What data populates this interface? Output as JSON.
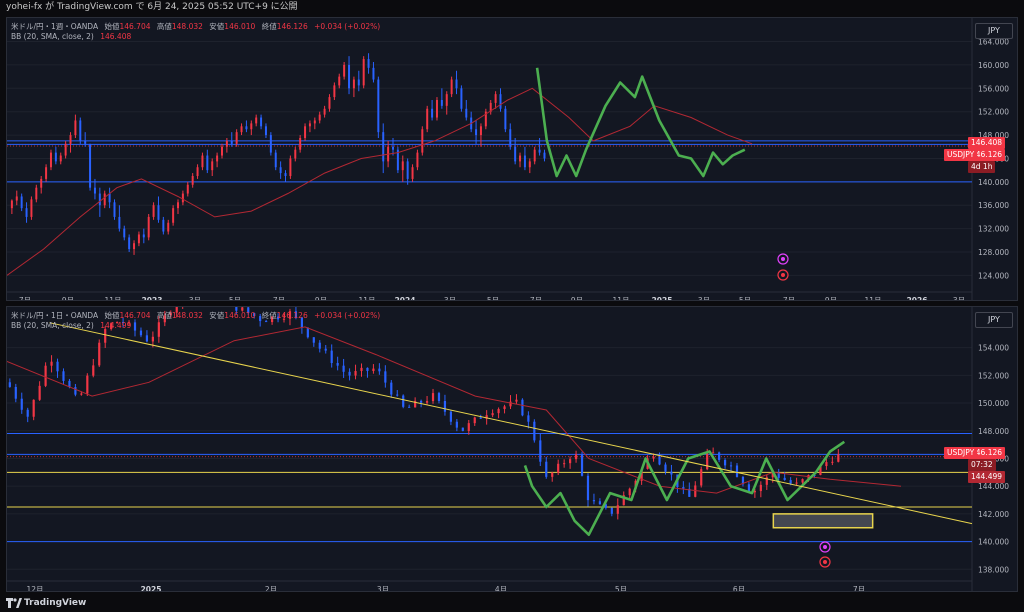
{
  "header": {
    "text": "yohei-fx が TradingView.com で 6月 24, 2025 05:52 UTC+9 に公開"
  },
  "footer": {
    "brand": "TradingView"
  },
  "colors": {
    "up": "#f23645",
    "down": "#2962ff",
    "bb": "#b22833",
    "green": "#4caf50",
    "yellow": "#e8d44d",
    "hline": "#2962ff"
  },
  "weekly": {
    "legend_title": "米ドル/円・1週・OANDA",
    "o_label": "始値",
    "o": "146.704",
    "h_label": "高値",
    "h": "148.032",
    "l_label": "安値",
    "l": "146.010",
    "c_label": "終値",
    "c": "146.126",
    "chg": "+0.034 (+0.02%)",
    "bb_label": "BB (20, SMA, close, 2)",
    "bb_value": "146.408",
    "currency": "JPY",
    "tag_bb": "146.408",
    "tag_price": "146.126",
    "tag_symbol": "USDJPY",
    "tag_countdown": "4d 1h"
  },
  "daily": {
    "legend_title": "米ドル/円・1日・OANDA",
    "o_label": "始値",
    "o": "146.704",
    "h_label": "高値",
    "h": "148.032",
    "l_label": "安値",
    "l": "146.010",
    "c_label": "終値",
    "c": "146.126",
    "chg": "+0.034 (+0.02%)",
    "bb_label": "BB (20, SMA, close, 2)",
    "bb_value": "144.499",
    "currency": "JPY",
    "tag_price": "146.126",
    "tag_symbol": "USDJPY",
    "tag_countdown": "07:32",
    "tag_bb": "144.499"
  },
  "chart_data": [
    {
      "type": "candlestick",
      "title": "米ドル/円・1週・OANDA",
      "ylim": [
        121.5,
        167
      ],
      "yticks": [
        "164.000",
        "160.000",
        "156.000",
        "152.000",
        "148.000",
        "144.000",
        "140.000",
        "136.000",
        "132.000",
        "128.000",
        "124.000"
      ],
      "xticks": [
        "7月",
        "9月",
        "11月",
        "2023",
        "3月",
        "5月",
        "7月",
        "9月",
        "11月",
        "2024",
        "3月",
        "5月",
        "7月",
        "9月",
        "11月",
        "2025",
        "3月",
        "5月",
        "7月",
        "9月",
        "11月",
        "2026",
        "3月"
      ],
      "xticks_bold": [
        "2023",
        "2024",
        "2025",
        "2026"
      ],
      "horizontal_levels": [
        147.0,
        146.4,
        140.0
      ],
      "bb_basis_path": [
        [
          2022.45,
          124.0
        ],
        [
          2022.6,
          128.5
        ],
        [
          2022.75,
          134.0
        ],
        [
          2022.9,
          139.0
        ],
        [
          2023.0,
          140.5
        ],
        [
          2023.15,
          137.5
        ],
        [
          2023.3,
          134.0
        ],
        [
          2023.45,
          135.0
        ],
        [
          2023.6,
          138.0
        ],
        [
          2023.75,
          141.5
        ],
        [
          2023.9,
          144.0
        ],
        [
          2024.05,
          145.0
        ],
        [
          2024.2,
          147.0
        ],
        [
          2024.35,
          150.0
        ],
        [
          2024.5,
          154.0
        ],
        [
          2024.6,
          156.0
        ],
        [
          2024.75,
          151.0
        ],
        [
          2024.85,
          147.0
        ],
        [
          2025.0,
          149.5
        ],
        [
          2025.1,
          153.0
        ],
        [
          2025.25,
          151.0
        ],
        [
          2025.4,
          148.0
        ],
        [
          2025.5,
          146.5
        ]
      ],
      "green_path": [
        [
          2024.62,
          159.5
        ],
        [
          2024.66,
          147.0
        ],
        [
          2024.7,
          141.0
        ],
        [
          2024.74,
          144.5
        ],
        [
          2024.78,
          141.0
        ],
        [
          2024.82,
          145.5
        ],
        [
          2024.9,
          153.0
        ],
        [
          2024.96,
          157.0
        ],
        [
          2025.02,
          154.5
        ],
        [
          2025.05,
          158.0
        ],
        [
          2025.12,
          150.5
        ],
        [
          2025.2,
          144.5
        ],
        [
          2025.25,
          144.0
        ],
        [
          2025.3,
          141.0
        ],
        [
          2025.34,
          145.0
        ],
        [
          2025.38,
          143.0
        ],
        [
          2025.42,
          144.5
        ],
        [
          2025.47,
          145.5
        ]
      ],
      "candles": [
        [
          2022.47,
          135.5,
          137.0,
          134.5,
          136.8
        ],
        [
          2022.49,
          136.8,
          138.5,
          136.0,
          137.5
        ],
        [
          2022.51,
          137.5,
          138.0,
          135.0,
          135.5
        ],
        [
          2022.53,
          135.5,
          136.5,
          133.0,
          134.0
        ],
        [
          2022.55,
          134.0,
          137.5,
          133.5,
          137.0
        ],
        [
          2022.57,
          137.0,
          139.5,
          136.5,
          139.0
        ],
        [
          2022.59,
          139.0,
          141.0,
          138.0,
          140.5
        ],
        [
          2022.61,
          140.5,
          143.0,
          140.0,
          142.5
        ],
        [
          2022.63,
          142.5,
          145.5,
          142.0,
          145.0
        ],
        [
          2022.65,
          145.0,
          146.0,
          143.0,
          143.5
        ],
        [
          2022.67,
          143.5,
          145.0,
          143.0,
          144.5
        ],
        [
          2022.69,
          144.5,
          147.0,
          144.0,
          146.5
        ],
        [
          2022.71,
          146.5,
          148.5,
          145.0,
          148.0
        ],
        [
          2022.73,
          148.0,
          151.5,
          147.5,
          150.5
        ],
        [
          2022.75,
          150.5,
          151.0,
          146.5,
          147.0
        ],
        [
          2022.77,
          147.0,
          148.5,
          146.0,
          146.5
        ],
        [
          2022.79,
          146.5,
          146.5,
          138.5,
          139.0
        ],
        [
          2022.81,
          139.0,
          140.5,
          137.0,
          138.0
        ],
        [
          2022.83,
          138.0,
          139.0,
          134.0,
          136.0
        ],
        [
          2022.85,
          136.0,
          138.5,
          135.5,
          138.0
        ],
        [
          2022.87,
          138.0,
          139.0,
          135.5,
          136.5
        ],
        [
          2022.89,
          136.5,
          137.0,
          133.5,
          134.0
        ],
        [
          2022.91,
          134.0,
          136.0,
          131.5,
          132.0
        ],
        [
          2022.93,
          132.0,
          132.5,
          130.0,
          130.5
        ],
        [
          2022.95,
          130.5,
          131.0,
          128.0,
          128.5
        ],
        [
          2022.97,
          128.5,
          130.0,
          127.5,
          129.5
        ],
        [
          2022.99,
          129.5,
          131.5,
          129.0,
          131.0
        ],
        [
          2023.01,
          131.0,
          132.0,
          129.5,
          130.5
        ],
        [
          2023.03,
          130.5,
          134.5,
          130.0,
          134.0
        ],
        [
          2023.05,
          134.0,
          136.5,
          133.5,
          136.0
        ],
        [
          2023.07,
          136.0,
          137.5,
          133.0,
          133.5
        ],
        [
          2023.09,
          133.5,
          134.0,
          131.0,
          131.5
        ],
        [
          2023.11,
          131.5,
          133.5,
          131.0,
          133.0
        ],
        [
          2023.13,
          133.0,
          136.0,
          132.5,
          135.5
        ],
        [
          2023.15,
          135.5,
          137.0,
          134.5,
          136.5
        ],
        [
          2023.17,
          136.5,
          138.5,
          136.0,
          138.0
        ],
        [
          2023.19,
          138.0,
          140.0,
          137.5,
          139.5
        ],
        [
          2023.21,
          139.5,
          141.5,
          139.0,
          141.0
        ],
        [
          2023.23,
          141.0,
          143.0,
          140.5,
          142.5
        ],
        [
          2023.25,
          142.5,
          145.0,
          142.0,
          144.5
        ],
        [
          2023.27,
          144.5,
          145.5,
          141.5,
          142.0
        ],
        [
          2023.29,
          142.0,
          144.0,
          141.0,
          143.5
        ],
        [
          2023.31,
          143.5,
          145.0,
          142.5,
          144.5
        ],
        [
          2023.33,
          144.5,
          146.5,
          144.0,
          146.0
        ],
        [
          2023.35,
          146.0,
          147.5,
          145.0,
          147.0
        ],
        [
          2023.37,
          147.0,
          148.5,
          146.0,
          146.5
        ],
        [
          2023.39,
          146.5,
          149.0,
          146.0,
          148.5
        ],
        [
          2023.41,
          148.5,
          150.0,
          148.0,
          149.5
        ],
        [
          2023.43,
          149.5,
          150.5,
          148.5,
          149.0
        ],
        [
          2023.45,
          149.0,
          150.5,
          148.0,
          150.0
        ],
        [
          2023.47,
          150.0,
          151.5,
          149.5,
          151.0
        ],
        [
          2023.49,
          151.0,
          151.5,
          149.0,
          149.5
        ],
        [
          2023.51,
          149.5,
          150.0,
          147.5,
          148.0
        ],
        [
          2023.53,
          148.0,
          148.5,
          144.5,
          145.0
        ],
        [
          2023.55,
          145.0,
          145.5,
          142.0,
          142.5
        ],
        [
          2023.57,
          142.5,
          143.5,
          140.5,
          141.5
        ],
        [
          2023.59,
          141.5,
          142.0,
          140.0,
          141.0
        ],
        [
          2023.61,
          141.0,
          144.5,
          140.5,
          144.0
        ],
        [
          2023.63,
          144.0,
          146.0,
          143.5,
          145.5
        ],
        [
          2023.65,
          145.5,
          148.0,
          145.0,
          147.5
        ],
        [
          2023.67,
          147.5,
          150.0,
          147.0,
          149.5
        ],
        [
          2023.69,
          149.5,
          150.5,
          148.5,
          150.0
        ],
        [
          2023.71,
          150.0,
          151.0,
          149.0,
          150.5
        ],
        [
          2023.73,
          150.5,
          152.0,
          150.0,
          151.5
        ],
        [
          2023.75,
          151.5,
          153.0,
          151.0,
          152.5
        ],
        [
          2023.77,
          152.5,
          155.0,
          152.0,
          154.5
        ],
        [
          2023.79,
          154.5,
          157.0,
          154.0,
          156.5
        ],
        [
          2023.81,
          156.5,
          158.5,
          156.0,
          158.0
        ],
        [
          2023.83,
          158.0,
          160.5,
          157.5,
          160.0
        ],
        [
          2023.85,
          160.0,
          161.5,
          155.0,
          156.0
        ],
        [
          2023.87,
          156.0,
          158.0,
          154.5,
          157.5
        ],
        [
          2023.89,
          157.5,
          159.0,
          155.5,
          156.5
        ],
        [
          2023.91,
          156.5,
          161.5,
          156.0,
          161.0
        ],
        [
          2023.93,
          161.0,
          162.0,
          158.5,
          159.5
        ],
        [
          2023.95,
          159.5,
          160.5,
          157.0,
          157.5
        ],
        [
          2023.97,
          157.5,
          158.0,
          147.5,
          148.5
        ],
        [
          2023.99,
          148.5,
          150.0,
          141.5,
          143.5
        ],
        [
          2024.01,
          143.5,
          147.0,
          142.5,
          146.0
        ],
        [
          2024.03,
          146.0,
          147.5,
          144.5,
          145.5
        ],
        [
          2024.05,
          145.5,
          146.0,
          141.5,
          142.0
        ],
        [
          2024.07,
          142.0,
          144.5,
          140.0,
          143.5
        ],
        [
          2024.09,
          143.5,
          144.0,
          139.5,
          140.5
        ],
        [
          2024.11,
          140.5,
          143.0,
          140.0,
          142.5
        ],
        [
          2024.13,
          142.5,
          145.5,
          142.0,
          145.0
        ],
        [
          2024.15,
          145.0,
          149.5,
          144.5,
          149.0
        ],
        [
          2024.17,
          149.0,
          153.0,
          148.5,
          152.5
        ],
        [
          2024.19,
          152.5,
          154.0,
          150.5,
          151.0
        ],
        [
          2024.21,
          151.0,
          154.5,
          150.5,
          154.0
        ],
        [
          2024.23,
          154.0,
          156.0,
          152.5,
          153.0
        ],
        [
          2024.25,
          153.0,
          155.5,
          151.5,
          155.0
        ],
        [
          2024.27,
          155.0,
          158.0,
          154.5,
          157.5
        ],
        [
          2024.29,
          157.5,
          159.0,
          155.0,
          156.0
        ],
        [
          2024.31,
          156.0,
          156.5,
          152.0,
          152.5
        ],
        [
          2024.33,
          152.5,
          154.0,
          150.5,
          151.0
        ],
        [
          2024.35,
          151.0,
          152.0,
          148.5,
          149.0
        ],
        [
          2024.37,
          149.0,
          150.5,
          146.5,
          148.0
        ],
        [
          2024.39,
          148.0,
          150.0,
          146.0,
          149.5
        ],
        [
          2024.41,
          149.5,
          152.5,
          149.0,
          152.0
        ],
        [
          2024.43,
          152.0,
          154.0,
          151.5,
          153.5
        ],
        [
          2024.45,
          153.5,
          155.5,
          152.5,
          155.0
        ],
        [
          2024.47,
          155.0,
          156.0,
          152.0,
          152.5
        ],
        [
          2024.49,
          152.5,
          153.0,
          148.5,
          149.0
        ],
        [
          2024.51,
          149.0,
          150.0,
          145.5,
          146.0
        ],
        [
          2024.53,
          146.0,
          147.5,
          143.0,
          143.5
        ],
        [
          2024.55,
          143.5,
          145.0,
          142.5,
          144.5
        ],
        [
          2024.57,
          144.5,
          146.0,
          142.0,
          142.5
        ],
        [
          2024.59,
          142.5,
          144.0,
          141.5,
          143.5
        ],
        [
          2024.61,
          143.5,
          146.0,
          143.0,
          145.5
        ],
        [
          2024.63,
          145.5,
          147.5,
          144.5,
          145.0
        ],
        [
          2024.65,
          145.0,
          145.5,
          143.5,
          144.0
        ]
      ]
    },
    {
      "type": "candlestick",
      "title": "米ドル/円・1日・OANDA",
      "ylim": [
        137.3,
        156.5
      ],
      "yticks": [
        "154.000",
        "152.000",
        "150.000",
        "148.000",
        "146.000",
        "144.000",
        "142.000",
        "140.000",
        "138.000"
      ],
      "xticks": [
        "12月",
        "2025",
        "2月",
        "3月",
        "4月",
        "5月",
        "6月",
        "7月"
      ],
      "xticks_bold": [
        "2025"
      ],
      "horizontal_levels_blue": [
        147.8,
        146.3,
        140.0
      ],
      "horizontal_levels_yellow": [
        145.0,
        142.5
      ],
      "trendline": {
        "from": [
          2024.95,
          155.8
        ],
        "to": [
          2025.6,
          141.3
        ]
      },
      "target_box": {
        "x": [
          2025.46,
          2025.53
        ],
        "y": [
          141.0,
          142.0
        ]
      },
      "bb_basis_path": [
        [
          2024.92,
          153.0
        ],
        [
          2024.98,
          150.5
        ],
        [
          2025.02,
          151.5
        ],
        [
          2025.08,
          154.5
        ],
        [
          2025.13,
          155.5
        ],
        [
          2025.18,
          153.5
        ],
        [
          2025.25,
          150.5
        ],
        [
          2025.3,
          149.5
        ],
        [
          2025.33,
          146.0
        ],
        [
          2025.38,
          144.0
        ],
        [
          2025.42,
          143.5
        ],
        [
          2025.46,
          145.0
        ],
        [
          2025.5,
          144.5
        ],
        [
          2025.55,
          144.0
        ]
      ],
      "green_path": [
        [
          2025.285,
          145.5
        ],
        [
          2025.29,
          144.0
        ],
        [
          2025.3,
          142.5
        ],
        [
          2025.31,
          143.5
        ],
        [
          2025.32,
          141.5
        ],
        [
          2025.33,
          140.5
        ],
        [
          2025.345,
          143.5
        ],
        [
          2025.36,
          143.0
        ],
        [
          2025.37,
          146.0
        ],
        [
          2025.385,
          143.0
        ],
        [
          2025.4,
          146.0
        ],
        [
          2025.415,
          146.5
        ],
        [
          2025.43,
          144.0
        ],
        [
          2025.445,
          143.5
        ],
        [
          2025.455,
          146.0
        ],
        [
          2025.47,
          143.0
        ],
        [
          2025.48,
          144.0
        ],
        [
          2025.49,
          145.0
        ],
        [
          2025.5,
          146.5
        ],
        [
          2025.51,
          147.2
        ]
      ],
      "candles": []
    }
  ]
}
